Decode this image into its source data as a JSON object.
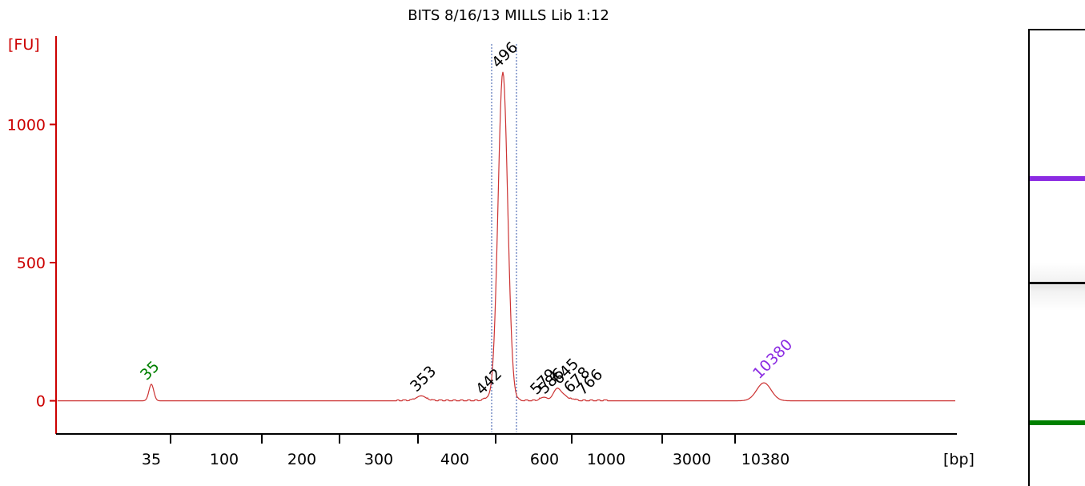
{
  "chart_data": {
    "type": "line",
    "title": "BITS 8/16/13 MILLS Lib 1:12",
    "ylabel": "[FU]",
    "xlabel": "[bp]",
    "ylim": [
      -120,
      1320
    ],
    "y_ticks": [
      "0",
      "500",
      "1000"
    ],
    "x_ticks": [
      "35",
      "100",
      "200",
      "300",
      "400",
      "600",
      "1000",
      "3000",
      "10380"
    ],
    "series": [
      {
        "color": "#cc3333",
        "peaks": [
          {
            "label": "35",
            "color": "#008000",
            "height": 60
          },
          {
            "label": "353",
            "color": "#000000",
            "height": 18
          },
          {
            "label": "442",
            "color": "#000000",
            "height": 8
          },
          {
            "label": "496",
            "color": "#000000",
            "height": 1190
          },
          {
            "label": "579",
            "color": "#000000",
            "height": 8
          },
          {
            "label": "586",
            "color": "#000000",
            "height": 10
          },
          {
            "label": "645",
            "color": "#000000",
            "height": 45
          },
          {
            "label": "678",
            "color": "#000000",
            "height": 14
          },
          {
            "label": "766",
            "color": "#000000",
            "height": 6
          },
          {
            "label": "10380",
            "color": "#8b2be2",
            "height": 65
          }
        ]
      }
    ],
    "grid": false
  },
  "gel": {
    "bands": [
      {
        "name": "upper-marker",
        "color": "#8b2be2"
      },
      {
        "name": "library",
        "color": "#000000"
      },
      {
        "name": "lower-marker",
        "color": "#008000"
      }
    ]
  }
}
